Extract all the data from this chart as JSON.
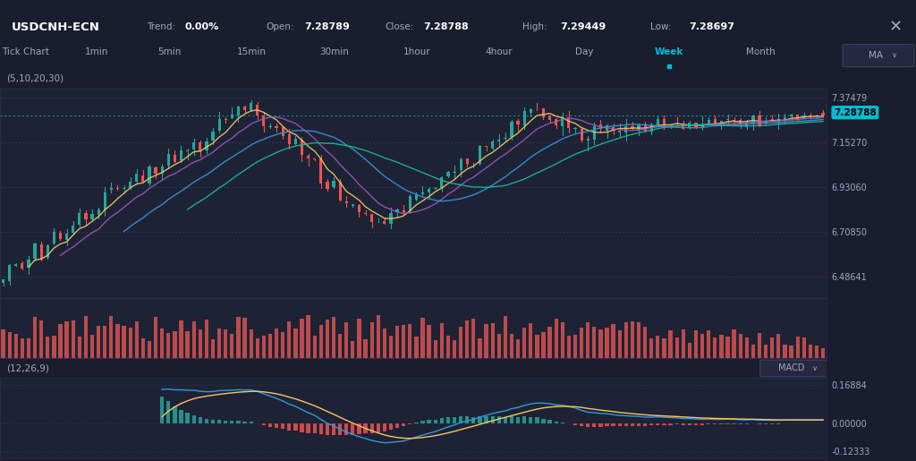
{
  "title": "USDCNH-ECN",
  "trend": "0.00%",
  "open": "7.28789",
  "close": "7.28788",
  "high": "7.29449",
  "low": "7.28697",
  "current_price": "7.28788",
  "timeframes": [
    "Tick Chart",
    "1min",
    "5min",
    "15min",
    "30min",
    "1hour",
    "4hour",
    "Day",
    "Week",
    "Month"
  ],
  "active_timeframe": "Week",
  "ma_label": "(5,10,20,30)",
  "macd_label": "(12,26,9)",
  "y_ticks": [
    6.48641,
    6.7085,
    6.9306,
    7.1527,
    7.37479
  ],
  "current_price_label": "7.28788",
  "macd_ticks": [
    -0.12333,
    0.0,
    0.16884
  ],
  "bg_color": "#1a1d2e",
  "panel_bg": "#1e2235",
  "grid_color": "#2a3050",
  "candle_up": "#26a69a",
  "candle_down": "#ef5350",
  "ma5_color": "#f6c85f",
  "ma10_color": "#9b59b6",
  "ma20_color": "#3498db",
  "ma30_color": "#1abc9c",
  "volume_color": "#ef5350",
  "macd_line_color": "#3498db",
  "signal_line_color": "#f6c85f",
  "macd_hist_up": "#26a69a",
  "macd_hist_down": "#ef5350",
  "current_price_bg": "#00bcd4",
  "dashed_line_color": "#3a4060",
  "text_color": "#a0a8c0",
  "header_bg": "#252840",
  "separator_color": "#2a3050"
}
